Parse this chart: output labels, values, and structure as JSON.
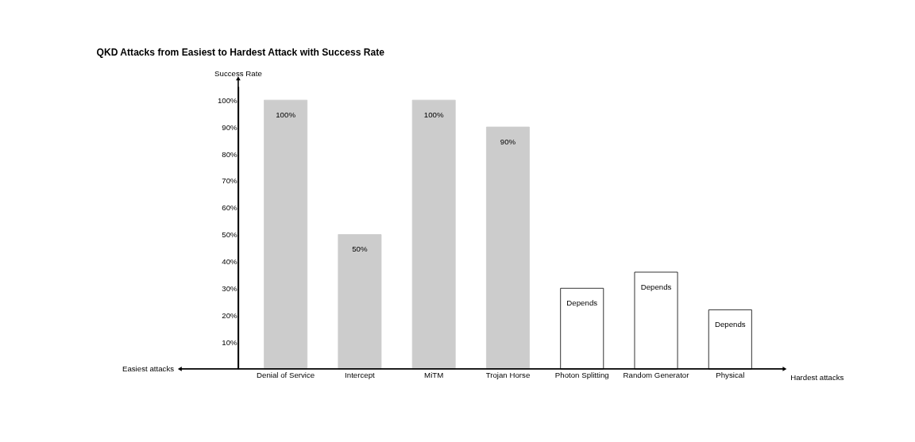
{
  "chart_data": {
    "type": "bar",
    "title": "QKD Attacks from Easiest to Hardest Attack with Success Rate",
    "ylabel": "Success Rate",
    "categories": [
      "Denial of Service",
      "Intercept",
      "MiTM",
      "Trojan Horse",
      "Photon Splitting",
      "Random Generator",
      "Physical"
    ],
    "values": [
      100,
      50,
      100,
      90,
      30,
      36,
      22
    ],
    "colors": [
      "#cccccc",
      "#cccccc",
      "#cccccc",
      "#cccccc",
      "#ffffff",
      "#ffffff",
      "#ffffff"
    ],
    "value_labels": [
      "100%",
      "50%",
      "100%",
      "90%",
      "Depends",
      "Depends",
      "Depends"
    ],
    "ylim": [
      0,
      105
    ],
    "yticks": [
      {
        "value": 10,
        "label": "10%"
      },
      {
        "value": 20,
        "label": "20%"
      },
      {
        "value": 30,
        "label": "30%"
      },
      {
        "value": 40,
        "label": "40%"
      },
      {
        "value": 50,
        "label": "50%"
      },
      {
        "value": 60,
        "label": "60%"
      },
      {
        "value": 70,
        "label": "70%"
      },
      {
        "value": 80,
        "label": "80%"
      },
      {
        "value": 90,
        "label": "90%"
      },
      {
        "value": 100,
        "label": "100%"
      }
    ],
    "annotations": [
      "Easiest attacks",
      "Hardest attacks"
    ],
    "grid": false
  }
}
